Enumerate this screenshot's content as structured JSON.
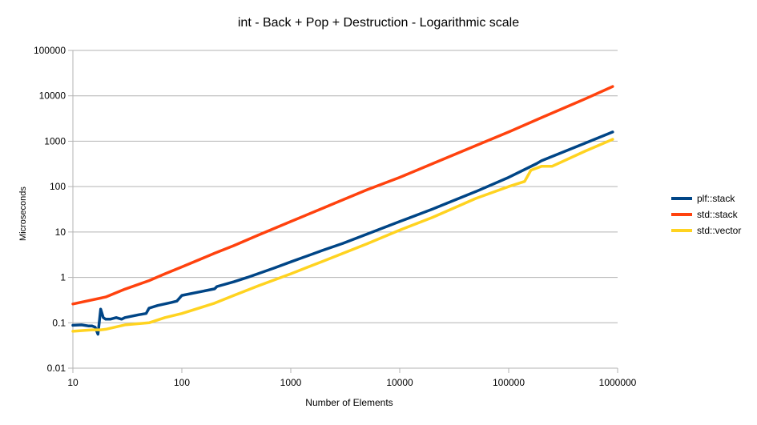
{
  "chart_data": {
    "type": "line",
    "title": "int - Back + Pop + Destruction - Logarithmic scale",
    "xlabel": "Number of Elements",
    "ylabel": "Microseconds",
    "x_scale": "log",
    "y_scale": "log",
    "xlim": [
      10,
      1000000
    ],
    "ylim": [
      0.01,
      100000
    ],
    "x_ticks": [
      "10",
      "100",
      "1000",
      "10000",
      "100000",
      "1000000"
    ],
    "y_ticks": [
      "0.01",
      "0.1",
      "1",
      "10",
      "100",
      "1000",
      "10000",
      "100000"
    ],
    "grid": "horizontal",
    "legend_position": "right",
    "series": [
      {
        "name": "plf::stack",
        "color": "#004586",
        "x": [
          10,
          12,
          14,
          15,
          16,
          17,
          18,
          19,
          20,
          22,
          25,
          28,
          30,
          40,
          47,
          50,
          60,
          80,
          90,
          100,
          200,
          210,
          300,
          400,
          700,
          1000,
          2000,
          3000,
          5000,
          10000,
          20000,
          50000,
          100000,
          180000,
          200000,
          500000,
          900000
        ],
        "y": [
          0.088,
          0.09,
          0.085,
          0.085,
          0.08,
          0.056,
          0.2,
          0.13,
          0.12,
          0.12,
          0.13,
          0.12,
          0.13,
          0.15,
          0.16,
          0.21,
          0.24,
          0.28,
          0.3,
          0.4,
          0.56,
          0.63,
          0.8,
          1.0,
          1.6,
          2.2,
          4.0,
          5.6,
          9.0,
          17,
          32,
          78,
          160,
          320,
          370,
          900,
          1600
        ]
      },
      {
        "name": "std::stack",
        "color": "#ff420e",
        "x": [
          10,
          20,
          30,
          50,
          70,
          100,
          200,
          300,
          500,
          1000,
          2000,
          5000,
          10000,
          20000,
          50000,
          100000,
          200000,
          500000,
          900000
        ],
        "y": [
          0.26,
          0.37,
          0.55,
          0.85,
          1.2,
          1.7,
          3.4,
          5.0,
          8.5,
          17,
          34,
          85,
          160,
          320,
          800,
          1600,
          3300,
          8500,
          16000
        ]
      },
      {
        "name": "std::vector",
        "color": "#ffd320",
        "x": [
          10,
          15,
          18,
          20,
          30,
          50,
          70,
          100,
          200,
          300,
          500,
          1000,
          2000,
          5000,
          10000,
          20000,
          50000,
          100000,
          140000,
          160000,
          200000,
          250000,
          500000,
          900000
        ],
        "y": [
          0.065,
          0.07,
          0.07,
          0.072,
          0.09,
          0.1,
          0.13,
          0.16,
          0.27,
          0.4,
          0.65,
          1.2,
          2.3,
          5.5,
          11,
          21,
          55,
          100,
          130,
          230,
          280,
          280,
          600,
          1100
        ]
      }
    ]
  }
}
